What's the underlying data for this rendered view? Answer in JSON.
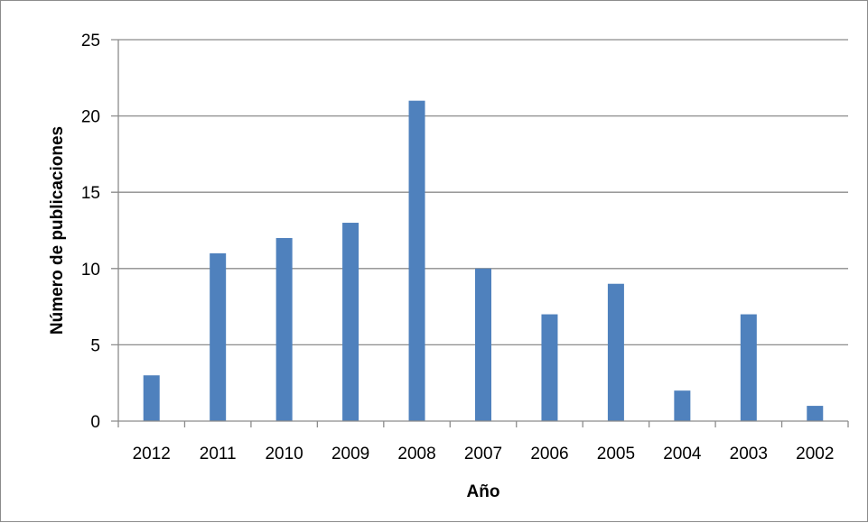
{
  "chart_data": {
    "type": "bar",
    "title": "",
    "xlabel": "Año",
    "ylabel": "Número de publicaciones",
    "categories": [
      "2012",
      "2011",
      "2010",
      "2009",
      "2008",
      "2007",
      "2006",
      "2005",
      "2004",
      "2003",
      "2002"
    ],
    "values": [
      3,
      11,
      12,
      13,
      21,
      10,
      7,
      9,
      2,
      7,
      1
    ],
    "ylim": [
      0,
      25
    ],
    "yticks": [
      "0",
      "5",
      "10",
      "15",
      "20",
      "25"
    ],
    "grid": true,
    "legend": "none",
    "colors": {
      "bar": "#4f81bd",
      "grid": "#8c8c8c",
      "axis": "#8c8c8c",
      "frame": "#8c8c8c"
    }
  }
}
